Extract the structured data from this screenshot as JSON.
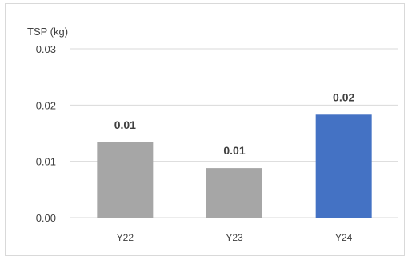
{
  "chart_data": {
    "type": "bar",
    "ylabel": "TSP (kg)",
    "categories": [
      "Y22",
      "Y23",
      "Y24"
    ],
    "values": [
      0.0134,
      0.0088,
      0.0183
    ],
    "data_labels": [
      "0.01",
      "0.01",
      "0.02"
    ],
    "ylim": [
      0,
      0.03
    ],
    "yticks": [
      0.0,
      0.01,
      0.02,
      0.03
    ],
    "ytick_labels": [
      "0.00",
      "0.01",
      "0.02",
      "0.03"
    ],
    "grid": true,
    "colors": [
      "#a6a6a6",
      "#a6a6a6",
      "#4472c4"
    ]
  }
}
